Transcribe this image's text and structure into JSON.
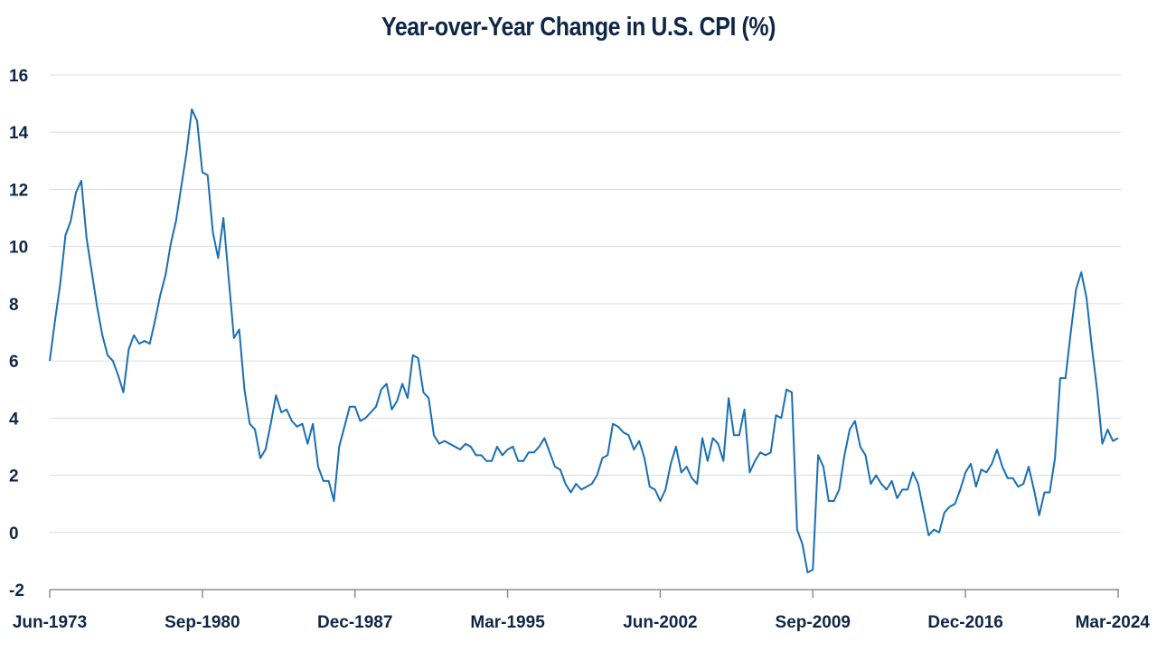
{
  "chart_data": {
    "type": "line",
    "title": "Year-over-Year Change in U.S. CPI (%)",
    "xlabel": "",
    "ylabel": "",
    "ylim": [
      -2,
      16
    ],
    "yticks": [
      -2,
      0,
      2,
      4,
      6,
      8,
      10,
      12,
      14,
      16
    ],
    "xrange": [
      "1973-06",
      "2024-03"
    ],
    "xticks": [
      "Jun-1973",
      "Sep-1980",
      "Dec-1987",
      "Mar-1995",
      "Jun-2002",
      "Sep-2009",
      "Dec-2016",
      "Mar-2024"
    ],
    "grid": "horizontal",
    "line_color": "#1a6fb3",
    "series": [
      {
        "points": [
          [
            "1973-06",
            6.0
          ],
          [
            "1973-09",
            7.4
          ],
          [
            "1973-12",
            8.7
          ],
          [
            "1974-03",
            10.4
          ],
          [
            "1974-06",
            10.9
          ],
          [
            "1974-09",
            11.9
          ],
          [
            "1974-12",
            12.3
          ],
          [
            "1975-03",
            10.3
          ],
          [
            "1975-06",
            9.1
          ],
          [
            "1975-09",
            7.9
          ],
          [
            "1975-12",
            6.9
          ],
          [
            "1976-03",
            6.2
          ],
          [
            "1976-06",
            6.0
          ],
          [
            "1976-09",
            5.5
          ],
          [
            "1976-12",
            4.9
          ],
          [
            "1977-03",
            6.4
          ],
          [
            "1977-06",
            6.9
          ],
          [
            "1977-09",
            6.6
          ],
          [
            "1977-12",
            6.7
          ],
          [
            "1978-03",
            6.6
          ],
          [
            "1978-06",
            7.4
          ],
          [
            "1978-09",
            8.3
          ],
          [
            "1978-12",
            9.0
          ],
          [
            "1979-03",
            10.1
          ],
          [
            "1979-06",
            10.9
          ],
          [
            "1979-09",
            12.1
          ],
          [
            "1979-12",
            13.3
          ],
          [
            "1980-03",
            14.8
          ],
          [
            "1980-06",
            14.4
          ],
          [
            "1980-09",
            12.6
          ],
          [
            "1980-12",
            12.5
          ],
          [
            "1981-03",
            10.5
          ],
          [
            "1981-06",
            9.6
          ],
          [
            "1981-09",
            11.0
          ],
          [
            "1981-12",
            8.9
          ],
          [
            "1982-03",
            6.8
          ],
          [
            "1982-06",
            7.1
          ],
          [
            "1982-09",
            5.0
          ],
          [
            "1982-12",
            3.8
          ],
          [
            "1983-03",
            3.6
          ],
          [
            "1983-06",
            2.6
          ],
          [
            "1983-09",
            2.9
          ],
          [
            "1983-12",
            3.8
          ],
          [
            "1984-03",
            4.8
          ],
          [
            "1984-06",
            4.2
          ],
          [
            "1984-09",
            4.3
          ],
          [
            "1984-12",
            3.9
          ],
          [
            "1985-03",
            3.7
          ],
          [
            "1985-06",
            3.8
          ],
          [
            "1985-09",
            3.1
          ],
          [
            "1985-12",
            3.8
          ],
          [
            "1986-03",
            2.3
          ],
          [
            "1986-06",
            1.8
          ],
          [
            "1986-09",
            1.8
          ],
          [
            "1986-12",
            1.1
          ],
          [
            "1987-03",
            3.0
          ],
          [
            "1987-06",
            3.7
          ],
          [
            "1987-09",
            4.4
          ],
          [
            "1987-12",
            4.4
          ],
          [
            "1988-03",
            3.9
          ],
          [
            "1988-06",
            4.0
          ],
          [
            "1988-09",
            4.2
          ],
          [
            "1988-12",
            4.4
          ],
          [
            "1989-03",
            5.0
          ],
          [
            "1989-06",
            5.2
          ],
          [
            "1989-09",
            4.3
          ],
          [
            "1989-12",
            4.6
          ],
          [
            "1990-03",
            5.2
          ],
          [
            "1990-06",
            4.7
          ],
          [
            "1990-09",
            6.2
          ],
          [
            "1990-12",
            6.1
          ],
          [
            "1991-03",
            4.9
          ],
          [
            "1991-06",
            4.7
          ],
          [
            "1991-09",
            3.4
          ],
          [
            "1991-12",
            3.1
          ],
          [
            "1992-03",
            3.2
          ],
          [
            "1992-06",
            3.1
          ],
          [
            "1992-09",
            3.0
          ],
          [
            "1992-12",
            2.9
          ],
          [
            "1993-03",
            3.1
          ],
          [
            "1993-06",
            3.0
          ],
          [
            "1993-09",
            2.7
          ],
          [
            "1993-12",
            2.7
          ],
          [
            "1994-03",
            2.5
          ],
          [
            "1994-06",
            2.5
          ],
          [
            "1994-09",
            3.0
          ],
          [
            "1994-12",
            2.7
          ],
          [
            "1995-03",
            2.9
          ],
          [
            "1995-06",
            3.0
          ],
          [
            "1995-09",
            2.5
          ],
          [
            "1995-12",
            2.5
          ],
          [
            "1996-03",
            2.8
          ],
          [
            "1996-06",
            2.8
          ],
          [
            "1996-09",
            3.0
          ],
          [
            "1996-12",
            3.3
          ],
          [
            "1997-03",
            2.8
          ],
          [
            "1997-06",
            2.3
          ],
          [
            "1997-09",
            2.2
          ],
          [
            "1997-12",
            1.7
          ],
          [
            "1998-03",
            1.4
          ],
          [
            "1998-06",
            1.7
          ],
          [
            "1998-09",
            1.5
          ],
          [
            "1998-12",
            1.6
          ],
          [
            "1999-03",
            1.7
          ],
          [
            "1999-06",
            2.0
          ],
          [
            "1999-09",
            2.6
          ],
          [
            "1999-12",
            2.7
          ],
          [
            "2000-03",
            3.8
          ],
          [
            "2000-06",
            3.7
          ],
          [
            "2000-09",
            3.5
          ],
          [
            "2000-12",
            3.4
          ],
          [
            "2001-03",
            2.9
          ],
          [
            "2001-06",
            3.2
          ],
          [
            "2001-09",
            2.6
          ],
          [
            "2001-12",
            1.6
          ],
          [
            "2002-03",
            1.5
          ],
          [
            "2002-06",
            1.1
          ],
          [
            "2002-09",
            1.5
          ],
          [
            "2002-12",
            2.4
          ],
          [
            "2003-03",
            3.0
          ],
          [
            "2003-06",
            2.1
          ],
          [
            "2003-09",
            2.3
          ],
          [
            "2003-12",
            1.9
          ],
          [
            "2004-03",
            1.7
          ],
          [
            "2004-06",
            3.3
          ],
          [
            "2004-09",
            2.5
          ],
          [
            "2004-12",
            3.3
          ],
          [
            "2005-03",
            3.1
          ],
          [
            "2005-06",
            2.5
          ],
          [
            "2005-09",
            4.7
          ],
          [
            "2005-12",
            3.4
          ],
          [
            "2006-03",
            3.4
          ],
          [
            "2006-06",
            4.3
          ],
          [
            "2006-09",
            2.1
          ],
          [
            "2006-12",
            2.5
          ],
          [
            "2007-03",
            2.8
          ],
          [
            "2007-06",
            2.7
          ],
          [
            "2007-09",
            2.8
          ],
          [
            "2007-12",
            4.1
          ],
          [
            "2008-03",
            4.0
          ],
          [
            "2008-06",
            5.0
          ],
          [
            "2008-09",
            4.9
          ],
          [
            "2008-12",
            0.1
          ],
          [
            "2009-03",
            -0.4
          ],
          [
            "2009-06",
            -1.4
          ],
          [
            "2009-09",
            -1.3
          ],
          [
            "2009-12",
            2.7
          ],
          [
            "2010-03",
            2.3
          ],
          [
            "2010-06",
            1.1
          ],
          [
            "2010-09",
            1.1
          ],
          [
            "2010-12",
            1.5
          ],
          [
            "2011-03",
            2.7
          ],
          [
            "2011-06",
            3.6
          ],
          [
            "2011-09",
            3.9
          ],
          [
            "2011-12",
            3.0
          ],
          [
            "2012-03",
            2.7
          ],
          [
            "2012-06",
            1.7
          ],
          [
            "2012-09",
            2.0
          ],
          [
            "2012-12",
            1.7
          ],
          [
            "2013-03",
            1.5
          ],
          [
            "2013-06",
            1.8
          ],
          [
            "2013-09",
            1.2
          ],
          [
            "2013-12",
            1.5
          ],
          [
            "2014-03",
            1.5
          ],
          [
            "2014-06",
            2.1
          ],
          [
            "2014-09",
            1.7
          ],
          [
            "2014-12",
            0.8
          ],
          [
            "2015-03",
            -0.1
          ],
          [
            "2015-06",
            0.1
          ],
          [
            "2015-09",
            0.0
          ],
          [
            "2015-12",
            0.7
          ],
          [
            "2016-03",
            0.9
          ],
          [
            "2016-06",
            1.0
          ],
          [
            "2016-09",
            1.5
          ],
          [
            "2016-12",
            2.1
          ],
          [
            "2017-03",
            2.4
          ],
          [
            "2017-06",
            1.6
          ],
          [
            "2017-09",
            2.2
          ],
          [
            "2017-12",
            2.1
          ],
          [
            "2018-03",
            2.4
          ],
          [
            "2018-06",
            2.9
          ],
          [
            "2018-09",
            2.3
          ],
          [
            "2018-12",
            1.9
          ],
          [
            "2019-03",
            1.9
          ],
          [
            "2019-06",
            1.6
          ],
          [
            "2019-09",
            1.7
          ],
          [
            "2019-12",
            2.3
          ],
          [
            "2020-03",
            1.5
          ],
          [
            "2020-06",
            0.6
          ],
          [
            "2020-09",
            1.4
          ],
          [
            "2020-12",
            1.4
          ],
          [
            "2021-03",
            2.6
          ],
          [
            "2021-06",
            5.4
          ],
          [
            "2021-09",
            5.4
          ],
          [
            "2021-12",
            7.0
          ],
          [
            "2022-03",
            8.5
          ],
          [
            "2022-06",
            9.1
          ],
          [
            "2022-09",
            8.2
          ],
          [
            "2022-12",
            6.5
          ],
          [
            "2023-03",
            5.0
          ],
          [
            "2023-06",
            3.1
          ],
          [
            "2023-09",
            3.6
          ],
          [
            "2023-12",
            3.2
          ],
          [
            "2024-03",
            3.3
          ]
        ]
      }
    ]
  }
}
